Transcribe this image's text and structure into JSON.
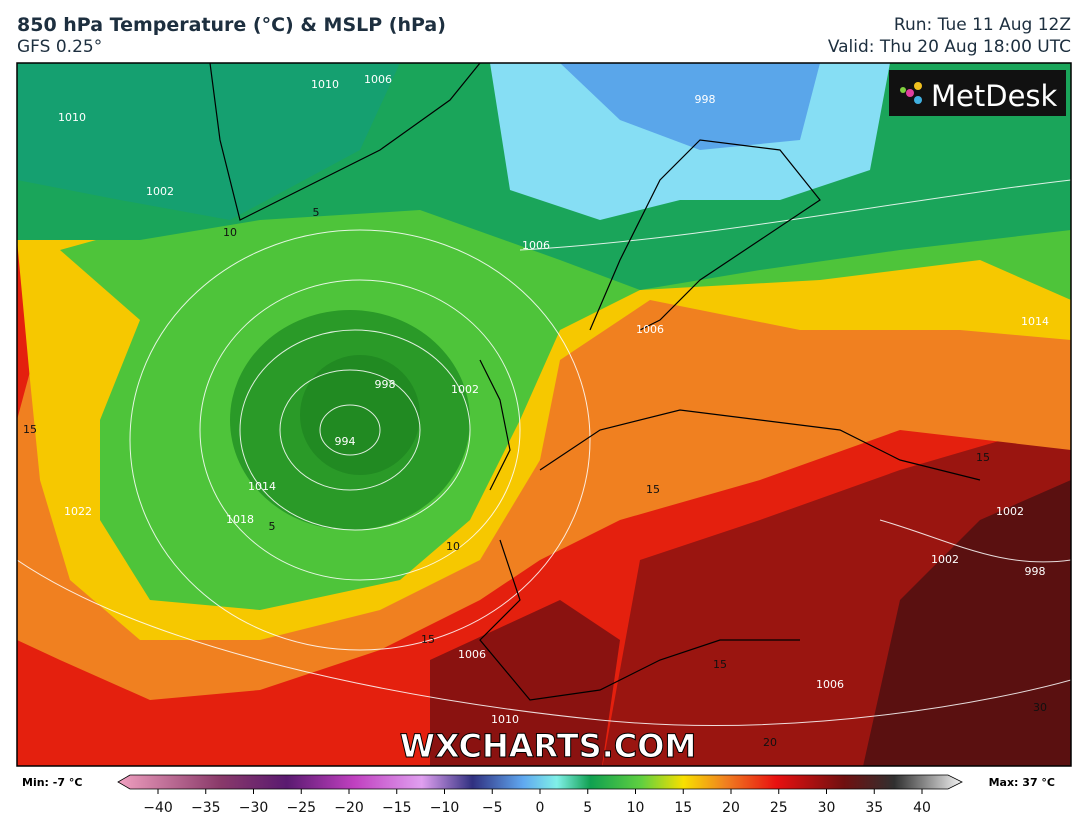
{
  "header": {
    "title": "850 hPa Temperature (°C) & MSLP (hPa)",
    "model": "GFS 0.25°",
    "run": "Run: Tue 11 Aug 12Z",
    "valid": "Valid: Thu 20 Aug 18:00 UTC"
  },
  "map": {
    "logo": "MetDesk",
    "watermark": "WXCHARTS.COM",
    "isobar_labels": [
      "1010",
      "1010",
      "1006",
      "1002",
      "1006",
      "998",
      "1002",
      "994",
      "1014",
      "1018",
      "1022",
      "998",
      "1006",
      "1014",
      "1002",
      "1002",
      "998",
      "1006",
      "1006",
      "1010"
    ],
    "temperature_labels": [
      "15",
      "5",
      "10",
      "5",
      "10",
      "15",
      "15",
      "15",
      "15",
      "20",
      "30"
    ]
  },
  "colorbar": {
    "min_label": "Min: -7 °C",
    "max_label": "Max: 37 °C",
    "ticks": [
      {
        "value": -40,
        "label": "−40"
      },
      {
        "value": -35,
        "label": "−35"
      },
      {
        "value": -30,
        "label": "−30"
      },
      {
        "value": -25,
        "label": "−25"
      },
      {
        "value": -20,
        "label": "−20"
      },
      {
        "value": -15,
        "label": "−15"
      },
      {
        "value": -10,
        "label": "−10"
      },
      {
        "value": -5,
        "label": "−5"
      },
      0,
      5,
      10,
      15,
      20,
      25,
      30,
      35,
      40
    ]
  }
}
